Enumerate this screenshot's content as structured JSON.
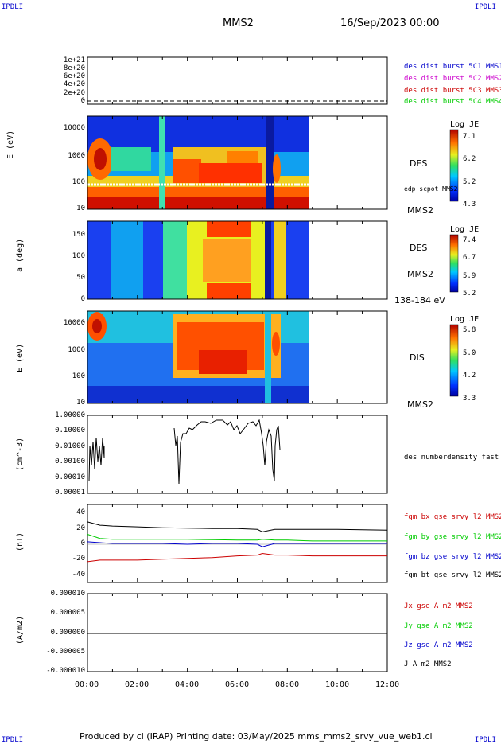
{
  "header": {
    "corner_tl": "IPDLI",
    "corner_tr": "IPDLI",
    "corner_bl": "IPDLI",
    "corner_br": "IPDLI",
    "title": "MMS2",
    "date": "16/Sep/2023 00:00"
  },
  "footer": {
    "text": "Produced by cl (IRAP)   Printing date: 03/May/2025   mms_mms2_srvy_vue_web1.cl"
  },
  "colors": {
    "c1": "#0000cc",
    "c2": "#cc00cc",
    "c3": "#cc0000",
    "c4": "#00cc00",
    "bx": "#cc0000",
    "by": "#00cc00",
    "bz": "#0000cc",
    "bt": "#000000"
  },
  "chart_data": [
    {
      "type": "line",
      "panel": "des_dist",
      "yticks": [
        "1e+21",
        "8e+20",
        "6e+20",
        "4e+20",
        "2e+20",
        "0"
      ],
      "legend": [
        "des dist burst 5C1 MMS1",
        "des dist burst 5C2 MMS2",
        "des dist burst 5C3 MMS3",
        "des dist burst 5C4 MMS4"
      ]
    },
    {
      "type": "heatmap",
      "panel": "des_energy",
      "ylabel": "E (eV)",
      "yticks": [
        "10000",
        "1000",
        "100",
        "10"
      ],
      "right_labels": [
        "DES",
        "edp scpot MMS2",
        "MMS2"
      ],
      "colorbar": {
        "title": "Log JE",
        "ticks": [
          "7.1",
          "6.2",
          "5.2",
          "4.3"
        ]
      }
    },
    {
      "type": "heatmap",
      "panel": "des_pitch",
      "ylabel": "a (deg)",
      "yticks": [
        "150",
        "100",
        "50",
        "0"
      ],
      "right_labels": [
        "DES",
        "MMS2",
        "138-184 eV"
      ],
      "colorbar": {
        "title": "Log JE",
        "ticks": [
          "7.4",
          "6.7",
          "5.9",
          "5.2"
        ]
      }
    },
    {
      "type": "heatmap",
      "panel": "dis_energy",
      "ylabel": "E (eV)",
      "yticks": [
        "10000",
        "1000",
        "100",
        "10"
      ],
      "right_labels": [
        "DIS",
        "MMS2"
      ],
      "colorbar": {
        "title": "Log JE",
        "ticks": [
          "5.8",
          "5.0",
          "4.2",
          "3.3"
        ]
      }
    },
    {
      "type": "line",
      "panel": "density",
      "ylabel": "(cm^-3)",
      "yticks": [
        "1.00000",
        "0.10000",
        "0.01000",
        "0.00100",
        "0.00010",
        "0.00001"
      ],
      "legend": [
        "des numberdensity fast M"
      ]
    },
    {
      "type": "line",
      "panel": "bfield",
      "ylabel": "(nT)",
      "yticks": [
        "40",
        "20",
        "0",
        "-20",
        "-40"
      ],
      "ylim": [
        -47,
        47
      ],
      "x_hours": [
        0,
        0.5,
        1,
        2,
        3,
        4,
        5,
        6,
        6.8,
        7,
        7.5,
        8,
        9,
        10,
        11,
        12
      ],
      "series": [
        {
          "name": "fgm bt gse srvy l2 MMS2",
          "values": [
            26,
            22,
            21,
            20,
            19,
            18.5,
            18,
            18,
            17,
            14,
            17,
            17,
            17,
            17,
            16.5,
            16
          ]
        },
        {
          "name": "fgm bx gse srvy l2 MMS2",
          "values": [
            -22,
            -20,
            -20,
            -20,
            -19,
            -18,
            -17,
            -15,
            -14,
            -12,
            -14,
            -14,
            -15,
            -15,
            -15,
            -15
          ]
        },
        {
          "name": "fgm by gse srvy l2 MMS2",
          "values": [
            11,
            6,
            5,
            5,
            5,
            5,
            4.5,
            4,
            4,
            5,
            4,
            4,
            3,
            3,
            3,
            3
          ]
        },
        {
          "name": "fgm bz gse srvy l2 MMS2",
          "values": [
            2,
            1,
            0,
            0,
            0,
            -1,
            0,
            0,
            -1,
            -4,
            0,
            0,
            0,
            0,
            0,
            0
          ]
        }
      ]
    },
    {
      "type": "line",
      "panel": "current",
      "ylabel": "(A/m2)",
      "yticks": [
        "0.000010",
        "0.000005",
        "0.000000",
        "-0.000005",
        "-0.000010"
      ],
      "legend": [
        "Jx gse A m2 MMS2",
        "Jy gse A m2 MMS2",
        "Jz gse A m2 MMS2",
        "J A m2 MMS2"
      ]
    }
  ],
  "xaxis": {
    "ticks": [
      "00:00",
      "02:00",
      "04:00",
      "06:00",
      "08:00",
      "10:00",
      "12:00"
    ]
  }
}
